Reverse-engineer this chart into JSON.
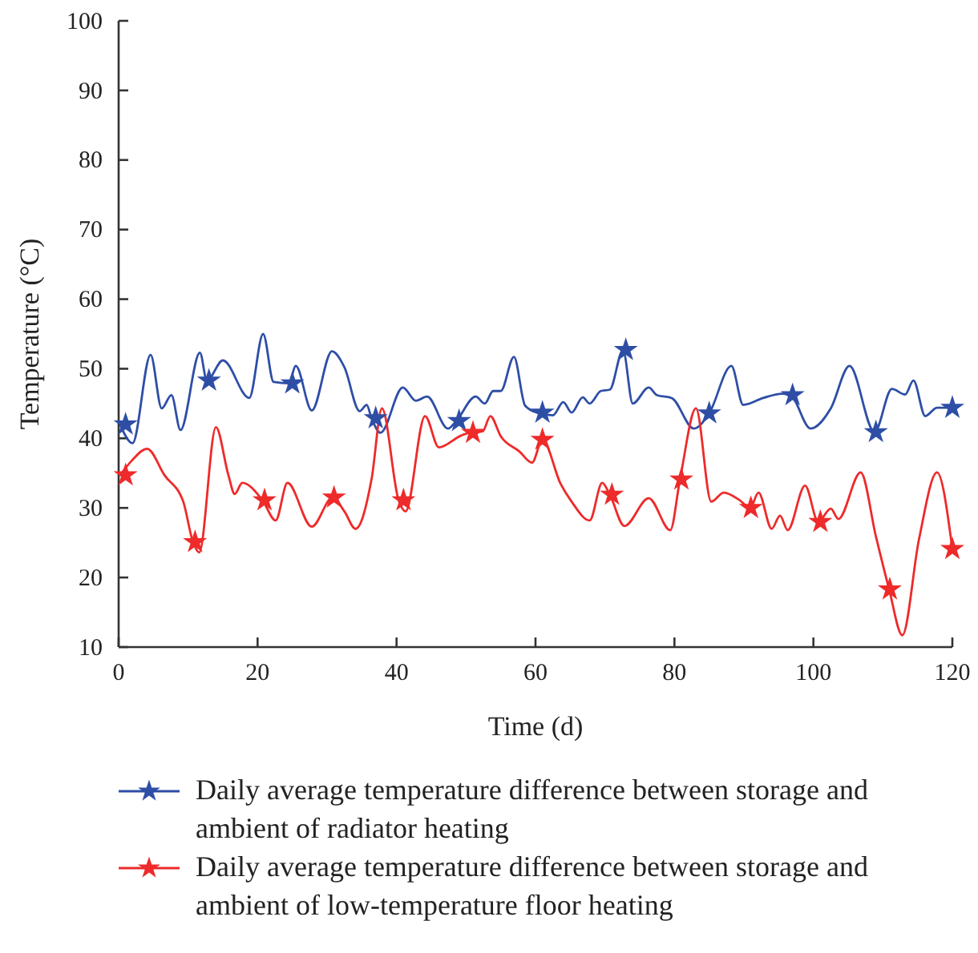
{
  "chart_data": {
    "type": "line",
    "xlabel": "Time (d)",
    "ylabel": "Temperature (°C)",
    "xlim": [
      0,
      120
    ],
    "xticks": [
      0,
      20,
      40,
      60,
      80,
      100,
      120
    ],
    "ylim": [
      10,
      100
    ],
    "yticks": [
      10,
      20,
      30,
      40,
      50,
      60,
      70,
      80,
      90,
      100
    ],
    "legend": "bottom",
    "marker": "star",
    "grid": false,
    "series": [
      {
        "name": "Daily average temperature difference between storage and ambient of radiator heating",
        "color": "#2e4ea6",
        "marker": "none",
        "x": [
          0.2,
          2,
          4.6,
          6.2,
          7.6,
          8.9,
          11.7,
          12.7,
          15,
          18.8,
          20.8,
          22.3,
          24.5,
          25.5,
          27.8,
          30.7,
          32.5,
          34.7,
          35.7,
          36.4,
          37.7,
          40.9,
          42.8,
          44.4,
          47.4,
          48.6,
          51.4,
          52.7,
          53.9,
          55,
          56.9,
          58.5,
          60.2,
          62.5,
          64,
          65.2,
          66.8,
          67.8,
          69.4,
          70.7,
          72.6,
          74,
          76.3,
          77.5,
          79.6,
          82.8,
          85,
          88.2,
          89.9,
          92.8,
          95.5,
          96.7,
          99.6,
          102.5,
          105.2,
          108.8,
          111.3,
          113.2,
          114.4,
          116.1,
          117.8,
          120
        ],
        "values": [
          42,
          39.3,
          52,
          44.3,
          46.2,
          41.2,
          52.3,
          48.3,
          51.2,
          45.8,
          55,
          48.1,
          47.9,
          50.4,
          44,
          52.5,
          50.2,
          43.9,
          44.8,
          42.9,
          40.8,
          47.3,
          45.4,
          46,
          41.4,
          42.5,
          46,
          45,
          46.8,
          46.8,
          51.7,
          44.7,
          43.7,
          43.3,
          45.2,
          43.7,
          45.9,
          45,
          46.8,
          47,
          52.7,
          45,
          47.3,
          46.2,
          45.8,
          41.4,
          43.6,
          50.4,
          44.8,
          45.8,
          46.4,
          46.2,
          41.4,
          44.3,
          50.4,
          40.9,
          47.1,
          46.3,
          48.3,
          43.2,
          44.4,
          44.4
        ]
      },
      {
        "name": "Daily average temperature difference between storage and ambient of low-temperature floor heating",
        "color": "#ee2a2a",
        "marker": "none",
        "x": [
          0.2,
          1.9,
          4.1,
          6.6,
          9.3,
          10.7,
          11.6,
          14,
          15.8,
          16.7,
          17.8,
          20.7,
          22.6,
          24.3,
          27.8,
          30.8,
          32.5,
          34.1,
          36.4,
          37.9,
          40.3,
          41.3,
          44.1,
          46.1,
          49.3,
          50.5,
          52.4,
          53.5,
          55,
          57.7,
          59.5,
          61,
          63.6,
          65.2,
          67.8,
          69.6,
          70.7,
          72.8,
          76.3,
          79.4,
          80.8,
          83.1,
          85.3,
          87.1,
          89.4,
          90.9,
          92.1,
          94,
          95.2,
          96.3,
          98.8,
          100.7,
          102.5,
          103.6,
          106.8,
          109,
          110.9,
          112.8,
          115.2,
          117.8,
          120
        ],
        "values": [
          34.7,
          36.8,
          38.5,
          34.7,
          30.9,
          25.1,
          23.6,
          41.6,
          34.7,
          32,
          33.6,
          31.1,
          28.2,
          33.6,
          27.3,
          31.5,
          29.5,
          27,
          34.1,
          44.3,
          31.1,
          29.5,
          43.2,
          38.7,
          40.4,
          40.8,
          41,
          43.2,
          40.3,
          38.1,
          36.5,
          39.8,
          33.5,
          30.9,
          28.2,
          33.6,
          31.9,
          27.4,
          31.4,
          26.8,
          34.1,
          44.3,
          30.9,
          32.2,
          31.1,
          30,
          32.2,
          27,
          28.9,
          26.8,
          33.2,
          28,
          29.9,
          28.4,
          35.1,
          25.9,
          18.3,
          11.7,
          25.5,
          35.1,
          24.1
        ]
      },
      {
        "type": "scatter",
        "color": "#2e4ea6",
        "x": [
          1,
          13,
          25,
          37,
          49,
          61,
          73,
          85,
          97,
          109,
          120
        ],
        "values": [
          42,
          48.3,
          47.9,
          42.9,
          42.5,
          43.7,
          52.7,
          43.6,
          46.2,
          40.9,
          44.4
        ]
      },
      {
        "type": "scatter",
        "color": "#ee2a2a",
        "x": [
          1,
          11,
          21,
          31,
          41,
          51,
          61,
          71,
          81,
          91,
          101,
          111,
          120
        ],
        "values": [
          34.7,
          25.1,
          31.1,
          31.5,
          31.1,
          40.8,
          39.8,
          31.9,
          34.1,
          30,
          28,
          18.3,
          24.1
        ]
      }
    ]
  }
}
